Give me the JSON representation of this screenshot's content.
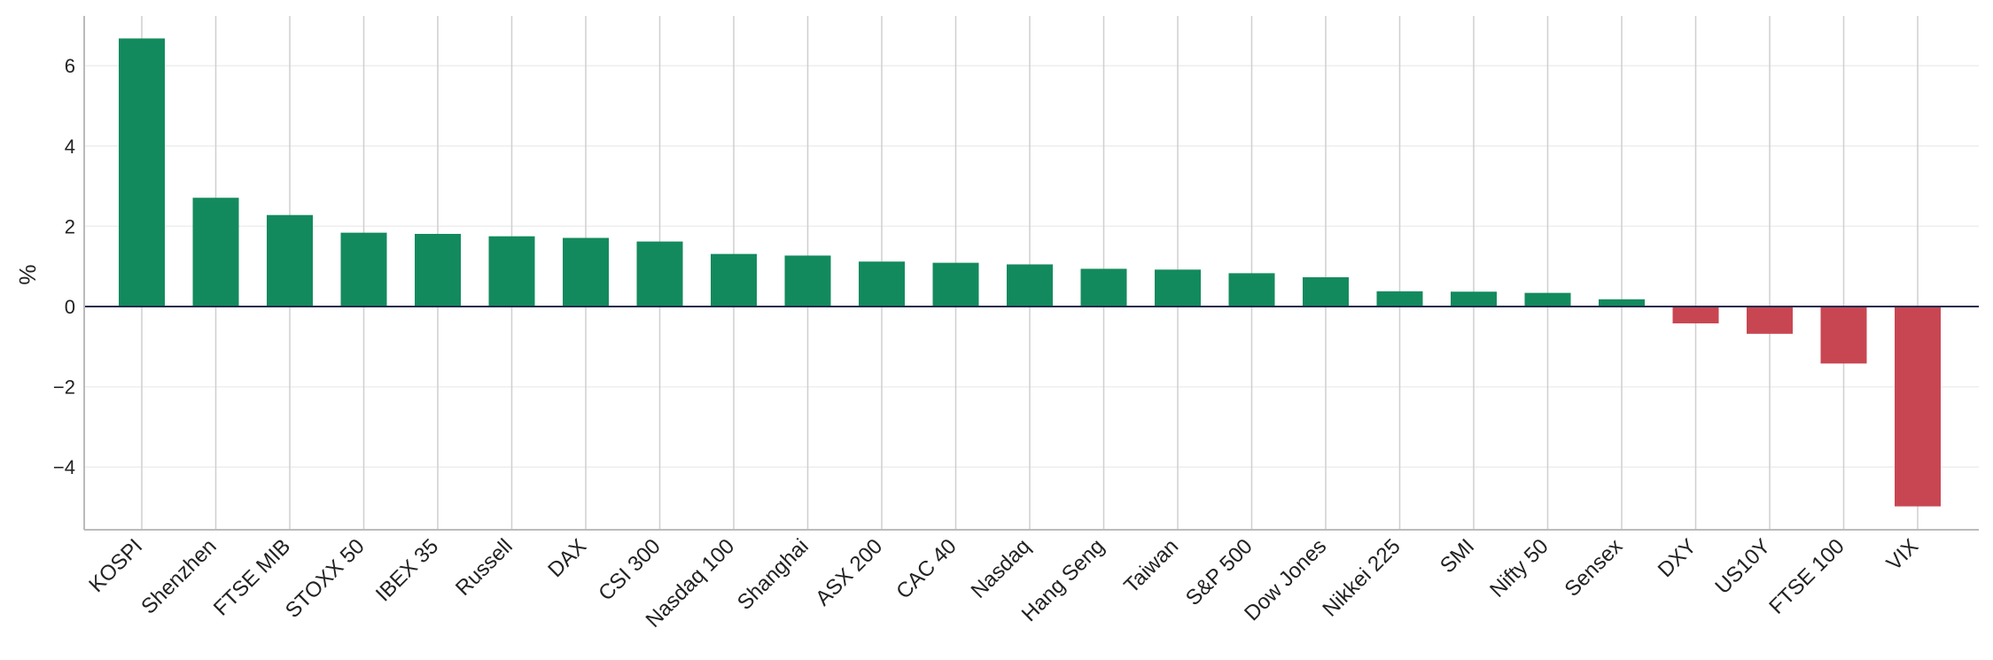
{
  "chart_data": {
    "type": "bar",
    "title": "",
    "xlabel": "",
    "ylabel": "%",
    "ylim": [
      -5.6,
      7.3
    ],
    "yticks": [
      -4,
      -2,
      0,
      2,
      4,
      6
    ],
    "ytick_labels": [
      "−4",
      "−2",
      "0",
      "2",
      "4",
      "6"
    ],
    "grid": "horizontal light, vertical at categories",
    "legend": "none",
    "categories": [
      "KOSPI",
      "Shenzhen",
      "FTSE MIB",
      "STOXX 50",
      "IBEX 35",
      "Russell",
      "DAX",
      "CSI 300",
      "Nasdaq 100",
      "Shanghai",
      "ASX 200",
      "CAC 40",
      "Nasdaq",
      "Hang Seng",
      "Taiwan",
      "S&P 500",
      "Dow Jones",
      "Nikkei 225",
      "SMI",
      "Nifty 50",
      "Sensex",
      "DXY",
      "US10Y",
      "FTSE 100",
      "VIX"
    ],
    "values": [
      6.68,
      2.71,
      2.28,
      1.84,
      1.81,
      1.75,
      1.71,
      1.62,
      1.31,
      1.27,
      1.12,
      1.09,
      1.05,
      0.94,
      0.92,
      0.83,
      0.73,
      0.38,
      0.37,
      0.34,
      0.18,
      -0.42,
      -0.68,
      -1.42,
      -4.98
    ],
    "colors": {
      "positive": "#138a5e",
      "negative": "#c84652",
      "zero_line": "#1f2d4d",
      "grid": "#cfcfcf",
      "axis": "#bbbbbb"
    }
  }
}
